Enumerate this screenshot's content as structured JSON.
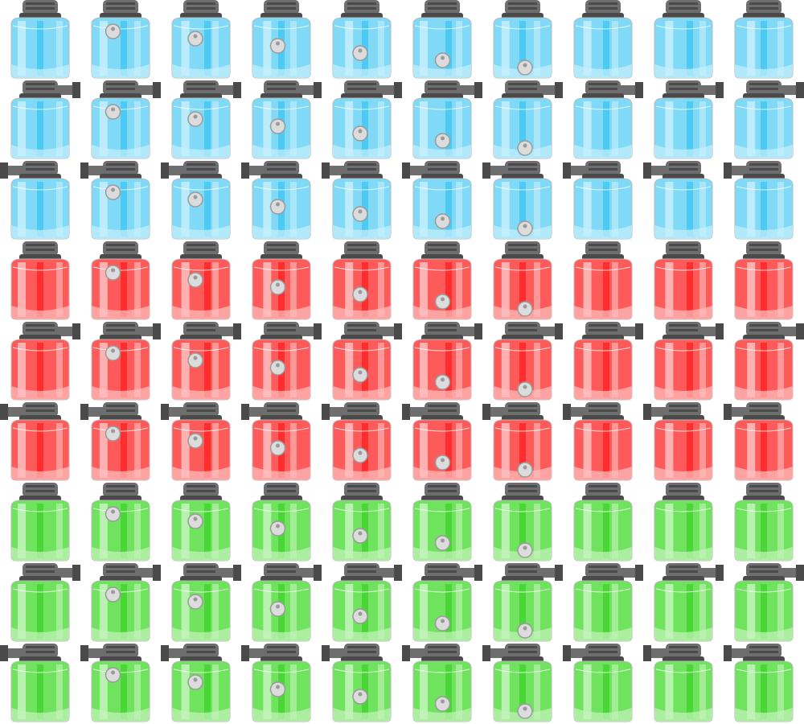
{
  "sheet": {
    "columns": 10,
    "row_groups": [
      {
        "name": "blue-tanks",
        "liquid": "#7fd9f7",
        "liquid_dark": "#3cc4f2",
        "liquid_light": "#c6effc"
      },
      {
        "name": "red-tanks",
        "liquid": "#ff5a5a",
        "liquid_dark": "#ff1f1f",
        "liquid_light": "#ffc0c0"
      },
      {
        "name": "green-tanks",
        "liquid": "#6fe25e",
        "liquid_dark": "#3ed22a",
        "liquid_light": "#c4f4bc"
      }
    ],
    "nozzle_variants": [
      "none",
      "right",
      "left"
    ],
    "metal": "#6e6e6e",
    "metal_dark": "#4a4a4a",
    "metal_light": "#9a9a9a",
    "ball": "#dcdcdc",
    "icon": "tank-sprite-icon"
  }
}
